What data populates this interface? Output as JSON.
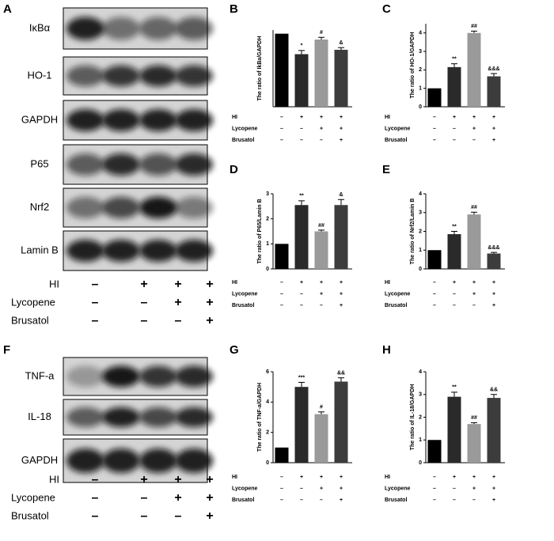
{
  "blots": [
    {
      "panel": "A",
      "rows": [
        "IκBα",
        "HO-1",
        "GAPDH",
        "P65",
        "Nrf2",
        "Lamin B"
      ],
      "treatments": [
        {
          "label": "HI",
          "signs": [
            "–",
            "+",
            "+",
            "+"
          ]
        },
        {
          "label": "Lycopene",
          "signs": [
            "–",
            "–",
            "+",
            "+"
          ]
        },
        {
          "label": "Brusatol",
          "signs": [
            "–",
            "–",
            "–",
            "+"
          ]
        }
      ]
    },
    {
      "panel": "F",
      "rows": [
        "TNF-a",
        "IL-18",
        "GAPDH"
      ],
      "treatments": [
        {
          "label": "HI",
          "signs": [
            "–",
            "+",
            "+",
            "+"
          ]
        },
        {
          "label": "Lycopene",
          "signs": [
            "–",
            "–",
            "+",
            "+"
          ]
        },
        {
          "label": "Brusatol",
          "signs": [
            "–",
            "–",
            "–",
            "+"
          ]
        }
      ]
    }
  ],
  "chart_data": [
    {
      "type": "bar",
      "panel": "B",
      "ylabel": "The ratio of IkBa/GAPDH",
      "values": [
        1.0,
        0.72,
        0.92,
        0.78
      ],
      "errors": [
        0.0,
        0.05,
        0.03,
        0.03
      ],
      "annotations": [
        null,
        "*",
        "#",
        "&"
      ],
      "colors": [
        "#000000",
        "#2a2a2a",
        "#9a9a9a",
        "#3c3c3c"
      ],
      "ylim": [
        0,
        1.05
      ],
      "treatments": [
        {
          "label": "HI",
          "signs": [
            "–",
            "+",
            "+",
            "+"
          ]
        },
        {
          "label": "Lycopene",
          "signs": [
            "–",
            "–",
            "+",
            "+"
          ]
        },
        {
          "label": "Brusatol",
          "signs": [
            "–",
            "–",
            "–",
            "+"
          ]
        }
      ]
    },
    {
      "type": "bar",
      "panel": "C",
      "ylabel": "The ratio of HO-1/GAPDH",
      "values": [
        1.0,
        2.15,
        4.0,
        1.65
      ],
      "errors": [
        0.0,
        0.18,
        0.1,
        0.15
      ],
      "annotations": [
        null,
        "**",
        "##",
        "&&&"
      ],
      "colors": [
        "#000000",
        "#2a2a2a",
        "#9a9a9a",
        "#3c3c3c"
      ],
      "ylim": [
        0,
        4.5
      ],
      "yticks": [
        0,
        1,
        2,
        3,
        4
      ],
      "treatments": [
        {
          "label": "HI",
          "signs": [
            "–",
            "+",
            "+",
            "+"
          ]
        },
        {
          "label": "Lycopene",
          "signs": [
            "–",
            "–",
            "+",
            "+"
          ]
        },
        {
          "label": "Brusatol",
          "signs": [
            "–",
            "–",
            "–",
            "+"
          ]
        }
      ]
    },
    {
      "type": "bar",
      "panel": "D",
      "ylabel": "The ratio of P65/Lamin B",
      "values": [
        1.0,
        2.55,
        1.5,
        2.55
      ],
      "errors": [
        0.0,
        0.17,
        0.05,
        0.22
      ],
      "annotations": [
        null,
        "**",
        "##",
        "&"
      ],
      "colors": [
        "#000000",
        "#2a2a2a",
        "#9a9a9a",
        "#3c3c3c"
      ],
      "ylim": [
        0,
        3
      ],
      "yticks": [
        0,
        1,
        2,
        3
      ],
      "treatments": [
        {
          "label": "HI",
          "signs": [
            "–",
            "+",
            "+",
            "+"
          ]
        },
        {
          "label": "Lycopene",
          "signs": [
            "–",
            "–",
            "+",
            "+"
          ]
        },
        {
          "label": "Brusatol",
          "signs": [
            "–",
            "–",
            "–",
            "+"
          ]
        }
      ]
    },
    {
      "type": "bar",
      "panel": "E",
      "ylabel": "The ratio of Nrf2/Lamin B",
      "values": [
        1.0,
        1.85,
        2.9,
        0.82
      ],
      "errors": [
        0.0,
        0.15,
        0.12,
        0.06
      ],
      "annotations": [
        null,
        "**",
        "##",
        "&&&"
      ],
      "colors": [
        "#000000",
        "#2a2a2a",
        "#9a9a9a",
        "#3c3c3c"
      ],
      "ylim": [
        0,
        4
      ],
      "yticks": [
        0,
        1,
        2,
        3,
        4
      ],
      "treatments": [
        {
          "label": "HI",
          "signs": [
            "–",
            "+",
            "+",
            "+"
          ]
        },
        {
          "label": "Lycopene",
          "signs": [
            "–",
            "–",
            "+",
            "+"
          ]
        },
        {
          "label": "Brusatol",
          "signs": [
            "–",
            "–",
            "–",
            "+"
          ]
        }
      ]
    },
    {
      "type": "bar",
      "panel": "G",
      "ylabel": "The ratio of TNF-a/GAPDH",
      "values": [
        1.0,
        5.0,
        3.2,
        5.35
      ],
      "errors": [
        0.0,
        0.3,
        0.15,
        0.25
      ],
      "annotations": [
        null,
        "***",
        "#",
        "&&"
      ],
      "colors": [
        "#000000",
        "#2a2a2a",
        "#9a9a9a",
        "#3c3c3c"
      ],
      "ylim": [
        0,
        6
      ],
      "yticks": [
        0,
        2,
        4,
        6
      ],
      "treatments": [
        {
          "label": "HI",
          "signs": [
            "–",
            "+",
            "+",
            "+"
          ]
        },
        {
          "label": "Lycopene",
          "signs": [
            "–",
            "–",
            "+",
            "+"
          ]
        },
        {
          "label": "Brusatol",
          "signs": [
            "–",
            "–",
            "–",
            "+"
          ]
        }
      ]
    },
    {
      "type": "bar",
      "panel": "H",
      "ylabel": "The ratio of IL-18/GAPDH",
      "values": [
        1.0,
        2.9,
        1.7,
        2.85
      ],
      "errors": [
        0.0,
        0.2,
        0.06,
        0.15
      ],
      "annotations": [
        null,
        "**",
        "##",
        "&&"
      ],
      "colors": [
        "#000000",
        "#2a2a2a",
        "#9a9a9a",
        "#3c3c3c"
      ],
      "ylim": [
        0,
        4
      ],
      "yticks": [
        0,
        1,
        2,
        3,
        4
      ],
      "treatments": [
        {
          "label": "HI",
          "signs": [
            "–",
            "+",
            "+",
            "+"
          ]
        },
        {
          "label": "Lycopene",
          "signs": [
            "–",
            "–",
            "+",
            "+"
          ]
        },
        {
          "label": "Brusatol",
          "signs": [
            "–",
            "–",
            "–",
            "+"
          ]
        }
      ]
    }
  ]
}
